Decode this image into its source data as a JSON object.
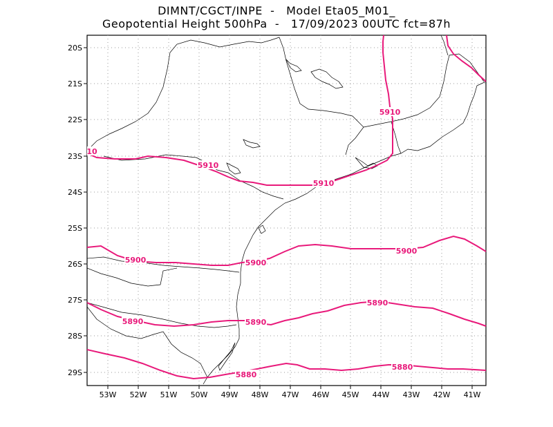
{
  "title_line1": "DIMNT/CGCT/INPE  -   Model Eta05_M01_",
  "title_line2": "Geopotential Height 500hPa  -   17/09/2023 00UTC fct=87h",
  "map": {
    "lon_range": [
      -53.6,
      -40.5
    ],
    "lat_range": [
      -29.4,
      -19.7
    ],
    "lat_ticks": [
      "20S",
      "21S",
      "22S",
      "23S",
      "24S",
      "25S",
      "26S",
      "27S",
      "28S",
      "29S"
    ],
    "lon_ticks": [
      "53W",
      "52W",
      "51W",
      "50W",
      "49W",
      "48W",
      "47W",
      "46W",
      "45W",
      "44W",
      "43W",
      "42W",
      "41W"
    ],
    "contour_color": "#e8197a",
    "coast_color": "#000000",
    "grid": "dotted"
  },
  "contours": [
    {
      "label": "5910",
      "visible_labels": [
        "5910",
        "5910",
        "5910",
        "10"
      ]
    },
    {
      "label": "5900",
      "visible_labels": [
        "5900",
        "5900",
        "5900"
      ]
    },
    {
      "label": "5890",
      "visible_labels": [
        "5890",
        "5890",
        "5890"
      ]
    },
    {
      "label": "5880",
      "visible_labels": [
        "5880",
        "5880"
      ]
    }
  ]
}
